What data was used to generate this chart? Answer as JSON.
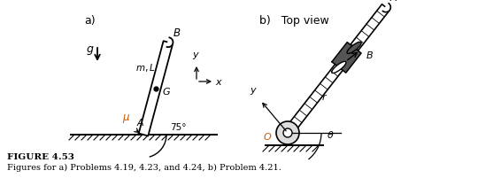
{
  "fig_width": 5.4,
  "fig_height": 2.1,
  "dpi": 100,
  "bg_color": "#ffffff",
  "label_a": "a)",
  "label_b": "b)   Top view",
  "figure_label": "FIGURE 4.53",
  "figure_caption": "Figures for a) Problems 4.19, 4.23, and 4.24, b) Problem 4.21.",
  "text_color": "#000000",
  "orange_color": "#cc5500",
  "gray_color": "#888888",
  "dark_gray": "#555555"
}
